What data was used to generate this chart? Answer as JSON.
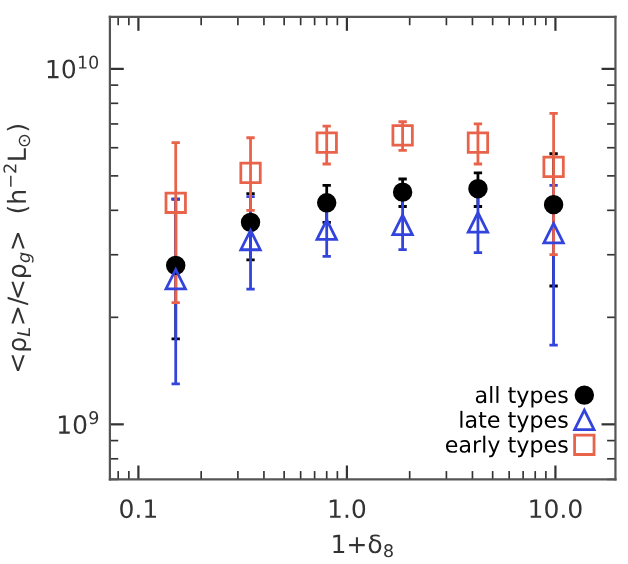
{
  "chart_data": {
    "type": "scatter",
    "xlabel": "1+δ$_{8}$",
    "ylabel": "<ρ$_{L}$>/<ρ$_{g}$>  (h$^{−2}$L$_{⊙}$)",
    "log": "xy",
    "xlim": [
      0.073,
      19.4
    ],
    "ylim": [
      700000000.0,
      14000000000.0
    ],
    "xticks": [
      {
        "value": 0.1,
        "label": "0.1"
      },
      {
        "value": 1,
        "label": "1.0"
      },
      {
        "value": 10,
        "label": "10.0"
      }
    ],
    "yticks": [
      {
        "value": 1000000000.0,
        "label": "10$^{9}$"
      },
      {
        "value": 10000000000.0,
        "label": "10$^{10}$"
      }
    ],
    "legend": "bottom right",
    "grid": false,
    "x": [
      0.151,
      0.345,
      0.8,
      1.85,
      4.25,
      9.8
    ],
    "series": [
      {
        "name": "all types",
        "color": "#000000",
        "marker": "circle",
        "values": [
          2800000000.0,
          3700000000.0,
          4200000000.0,
          4500000000.0,
          4600000000.0,
          4150000000.0
        ],
        "errors": [
          [
            1740000000.0,
            4300000000.0
          ],
          [
            2900000000.0,
            4460000000.0
          ],
          [
            3700000000.0,
            4700000000.0
          ],
          [
            4100000000.0,
            4900000000.0
          ],
          [
            4100000000.0,
            5100000000.0
          ],
          [
            2450000000.0,
            5770000000.0
          ]
        ]
      },
      {
        "name": "late types",
        "color": "#3344dd",
        "marker": "triangle",
        "values": [
          2560000000.0,
          3300000000.0,
          3530000000.0,
          3640000000.0,
          3700000000.0,
          3450000000.0
        ],
        "errors": [
          [
            1300000000.0,
            4300000000.0
          ],
          [
            2400000000.0,
            4370000000.0
          ],
          [
            2970000000.0,
            4070000000.0
          ],
          [
            3100000000.0,
            4300000000.0
          ],
          [
            3040000000.0,
            4460000000.0
          ],
          [
            1670000000.0,
            4700000000.0
          ]
        ]
      },
      {
        "name": "early types",
        "color": "#e8634a",
        "marker": "square",
        "values": [
          4200000000.0,
          5100000000.0,
          6200000000.0,
          6500000000.0,
          6200000000.0,
          5300000000.0
        ],
        "errors": [
          [
            2200000000.0,
            6200000000.0
          ],
          [
            4000000000.0,
            6400000000.0
          ],
          [
            5400000000.0,
            6900000000.0
          ],
          [
            5900000000.0,
            7100000000.0
          ],
          [
            5400000000.0,
            7000000000.0
          ],
          [
            3000000000.0,
            7500000000.0
          ]
        ]
      }
    ]
  }
}
